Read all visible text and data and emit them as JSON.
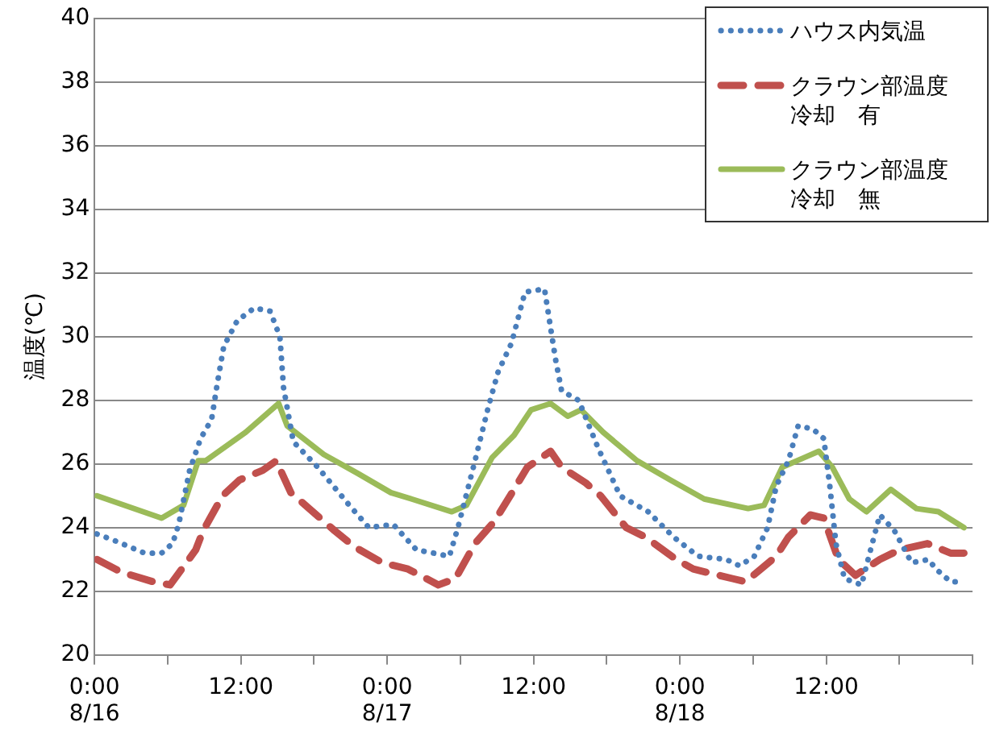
{
  "chart_data": {
    "type": "line",
    "ylabel": "温度(℃)",
    "xlim": [
      "--08-16T00:00",
      "--08-19T00:00"
    ],
    "xticks": [
      {
        "value": "--08-16T00:00",
        "label": "0:00\n8/16"
      },
      {
        "value": "--08-16T06:00",
        "label": null
      },
      {
        "value": "--08-16T12:00",
        "label": "12:00"
      },
      {
        "value": "--08-16T18:00",
        "label": null
      },
      {
        "value": "--08-17T00:00",
        "label": "0:00\n8/17"
      },
      {
        "value": "--08-17T06:00",
        "label": null
      },
      {
        "value": "--08-17T12:00",
        "label": "12:00"
      },
      {
        "value": "--08-17T18:00",
        "label": null
      },
      {
        "value": "--08-18T00:00",
        "label": "0:00\n8/18"
      },
      {
        "value": "--08-18T06:00",
        "label": null
      },
      {
        "value": "--08-18T12:00",
        "label": "12:00"
      },
      {
        "value": "--08-18T18:00",
        "label": null
      },
      {
        "value": "--08-19T00:00",
        "label": null
      }
    ],
    "ylim": [
      20,
      40
    ],
    "yticks": [
      20,
      22,
      24,
      26,
      28,
      30,
      32,
      34,
      36,
      38,
      40
    ],
    "grid": "y",
    "legend": "top right",
    "marker": "none",
    "series": [
      {
        "name": "ハウス内気温",
        "color": "#4a7ebb",
        "line_style": "dotted",
        "x": [
          "--08-16T00:12",
          "--08-16T01:36",
          "--08-16T04:06",
          "--08-16T05:30",
          "--08-16T06:24",
          "--08-16T06:54",
          "--08-16T07:48",
          "--08-16T08:42",
          "--08-16T09:36",
          "--08-16T10:06",
          "--08-16T10:36",
          "--08-16T11:42",
          "--08-16T13:06",
          "--08-16T14:24",
          "--08-16T15:12",
          "--08-16T15:30",
          "--08-16T16:18",
          "--08-16T18:18",
          "--08-16T20:54",
          "--08-16T22:30",
          "--08-17T00:30",
          "--08-17T02:24",
          "--08-17T03:48",
          "--08-17T05:06",
          "--08-17T05:48",
          "--08-17T07:12",
          "--08-17T08:18",
          "--08-17T09:06",
          "--08-17T10:12",
          "--08-17T11:18",
          "--08-17T12:54",
          "--08-17T13:48",
          "--08-17T14:18",
          "--08-17T15:42",
          "--08-17T17:18",
          "--08-17T19:06",
          "--08-17T21:24",
          "--08-17T23:30",
          "--08-18T01:30",
          "--08-18T03:48",
          "--08-18T04:54",
          "--08-18T06:06",
          "--08-18T07:12",
          "--08-18T07:54",
          "--08-18T08:54",
          "--08-18T09:42",
          "--08-18T10:54",
          "--08-18T11:48",
          "--08-18T12:18",
          "--08-18T12:48",
          "--08-18T13:30",
          "--08-18T14:54",
          "--08-18T15:30",
          "--08-18T16:24",
          "--08-18T17:36",
          "--08-18T19:00",
          "--08-18T20:24",
          "--08-18T21:00",
          "--08-18T22:12",
          "--08-18T23:18"
        ],
        "values": [
          23.8,
          23.6,
          23.2,
          23.2,
          23.5,
          24.1,
          25.8,
          26.8,
          27.4,
          28.6,
          29.7,
          30.5,
          30.9,
          30.8,
          30.0,
          28.4,
          26.7,
          25.9,
          24.7,
          24.0,
          24.1,
          23.3,
          23.2,
          23.1,
          24.0,
          26.1,
          27.8,
          28.9,
          29.8,
          31.4,
          31.5,
          29.3,
          28.3,
          28.0,
          26.5,
          25.0,
          24.5,
          23.7,
          23.1,
          23.0,
          22.8,
          23.1,
          24.0,
          25.3,
          26.1,
          27.2,
          27.1,
          26.8,
          25.3,
          23.5,
          22.4,
          22.2,
          23.1,
          24.4,
          23.9,
          22.9,
          23.0,
          22.7,
          22.3,
          22.3
        ]
      },
      {
        "name": "クラウン部温度冷却　有",
        "color": "#c0504d",
        "line_style": "dashed",
        "x": [
          "--08-16T00:12",
          "--08-16T02:12",
          "--08-16T04:48",
          "--08-16T06:12",
          "--08-16T08:18",
          "--08-16T08:54",
          "--08-16T10:30",
          "--08-16T11:54",
          "--08-16T13:48",
          "--08-16T14:54",
          "--08-16T16:06",
          "--08-16T17:36",
          "--08-16T19:42",
          "--08-16T21:18",
          "--08-16T23:36",
          "--08-17T01:42",
          "--08-17T04:12",
          "--08-17T05:36",
          "--08-17T07:12",
          "--08-17T08:48",
          "--08-17T10:24",
          "--08-17T11:30",
          "--08-17T13:24",
          "--08-17T14:18",
          "--08-17T16:18",
          "--08-17T17:30",
          "--08-17T19:36",
          "--08-17T21:12",
          "--08-17T23:42",
          "--08-18T01:06",
          "--08-18T04:18",
          "--08-18T05:24",
          "--08-18T07:54",
          "--08-18T08:54",
          "--08-18T10:42",
          "--08-18T11:48",
          "--08-18T13:00",
          "--08-18T14:24",
          "--08-18T16:24",
          "--08-18T18:00",
          "--08-18T20:18",
          "--08-18T22:12",
          "--08-18T23:18"
        ],
        "values": [
          23.0,
          22.6,
          22.3,
          22.2,
          23.3,
          23.9,
          25.0,
          25.5,
          25.8,
          26.1,
          25.1,
          24.6,
          23.9,
          23.4,
          22.9,
          22.7,
          22.2,
          22.4,
          23.5,
          24.2,
          25.2,
          25.9,
          26.4,
          25.9,
          25.4,
          25.0,
          24.0,
          23.7,
          23.0,
          22.7,
          22.4,
          22.3,
          23.1,
          23.7,
          24.4,
          24.3,
          23.0,
          22.5,
          23.0,
          23.3,
          23.5,
          23.2,
          23.2
        ]
      },
      {
        "name": "クラウン部温度冷却　無",
        "color": "#9bbb59",
        "line_style": "solid",
        "x": [
          "--08-16T00:12",
          "--08-16T05:30",
          "--08-16T07:18",
          "--08-16T08:30",
          "--08-16T09:06",
          "--08-16T12:24",
          "--08-16T15:06",
          "--08-16T15:48",
          "--08-16T18:48",
          "--08-16T21:36",
          "--08-17T00:18",
          "--08-17T02:00",
          "--08-17T05:18",
          "--08-17T06:30",
          "--08-17T08:36",
          "--08-17T10:24",
          "--08-17T11:48",
          "--08-17T13:24",
          "--08-17T14:48",
          "--08-17T15:54",
          "--08-17T17:42",
          "--08-17T20:30",
          "--08-17T23:12",
          "--08-18T02:00",
          "--08-18T05:36",
          "--08-18T06:54",
          "--08-18T08:24",
          "--08-18T10:12",
          "--08-18T11:24",
          "--08-18T12:30",
          "--08-18T13:54",
          "--08-18T15:18",
          "--08-18T17:18",
          "--08-18T19:24",
          "--08-18T21:12",
          "--08-18T23:18"
        ],
        "values": [
          25.0,
          24.3,
          24.7,
          26.1,
          26.1,
          27.0,
          27.9,
          27.2,
          26.3,
          25.7,
          25.1,
          24.9,
          24.5,
          24.7,
          26.2,
          26.9,
          27.7,
          27.9,
          27.5,
          27.7,
          27.0,
          26.1,
          25.5,
          24.9,
          24.6,
          24.7,
          25.9,
          26.2,
          26.4,
          25.9,
          24.9,
          24.5,
          25.2,
          24.6,
          24.5,
          24.0
        ]
      }
    ]
  }
}
